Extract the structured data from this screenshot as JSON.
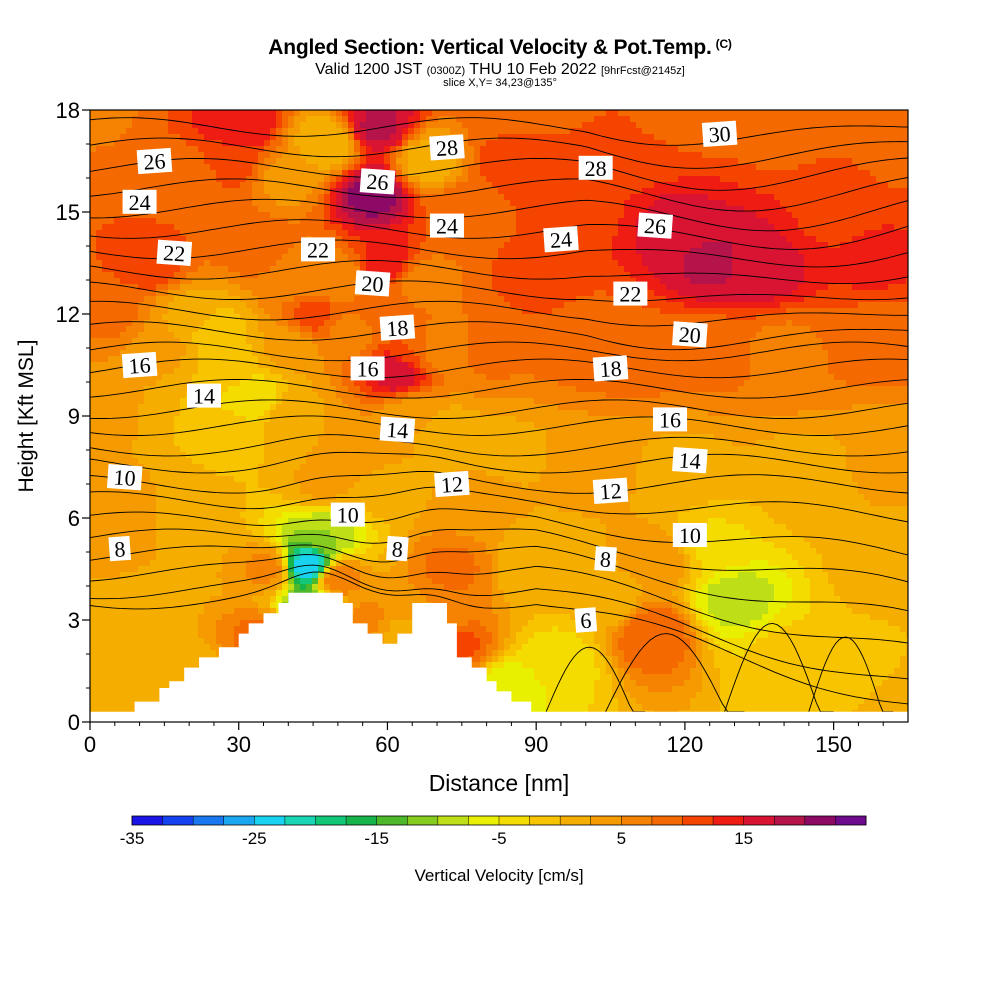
{
  "title": {
    "main": "Angled Section: Vertical Velocity & Pot.Temp.",
    "tag": "(C)",
    "valid_prefix": "Valid 1200 JST",
    "valid_utc": "(0300Z)",
    "valid_date": "THU 10 Feb 2022",
    "forecast": "[9hrFcst@2145z]",
    "slice": "slice X,Y= 34,23@135°"
  },
  "colors": {
    "background": "#ffffff",
    "contour_line": "#000000",
    "terrain": "#ffffff",
    "colorbar": [
      "#1a14e6",
      "#1442f0",
      "#1978f0",
      "#1aa6f0",
      "#19d2f0",
      "#1ad6b4",
      "#12c878",
      "#16b44a",
      "#4cb82a",
      "#86cc1e",
      "#bedf18",
      "#e8f000",
      "#f5dc00",
      "#f8c400",
      "#f5ae00",
      "#f59a00",
      "#f58200",
      "#f56a00",
      "#f54400",
      "#ef1c14",
      "#d81432",
      "#b4144a",
      "#8c0a66",
      "#6e0a8c"
    ]
  },
  "chart_data": {
    "type": "heatmap",
    "xlabel": "Distance [nm]",
    "ylabel": "Height [Kft MSL]",
    "xlim": [
      0,
      165
    ],
    "ylim": [
      0,
      18
    ],
    "xticks": [
      0,
      30,
      60,
      90,
      120,
      150
    ],
    "yticks": [
      0,
      3,
      6,
      9,
      12,
      15,
      18
    ],
    "colorbar": {
      "label": "Vertical Velocity [cm/s]",
      "min": -35,
      "max": 23,
      "step": 2.5,
      "tick_values": [
        -35,
        -25,
        -15,
        -5,
        5,
        15
      ]
    },
    "velocity_field": [
      {
        "x": 0,
        "y": 0.7,
        "w": 2
      },
      {
        "x": 10,
        "y": 2.5,
        "w": 1
      },
      {
        "x": 22,
        "y": 1.2,
        "w": 1
      },
      {
        "x": 35,
        "y": 2.5,
        "w": 9
      },
      {
        "x": 36,
        "y": 4.5,
        "w": 6
      },
      {
        "x": 38,
        "y": 1.0,
        "w": 9
      },
      {
        "x": 44,
        "y": 4.6,
        "w": -25
      },
      {
        "x": 47,
        "y": 5.5,
        "w": -10
      },
      {
        "x": 45,
        "y": 3.2,
        "w": -20
      },
      {
        "x": 50,
        "y": 4.2,
        "w": 7
      },
      {
        "x": 55,
        "y": 3.0,
        "w": 6
      },
      {
        "x": 63,
        "y": 2.6,
        "w": 2
      },
      {
        "x": 70,
        "y": 3.0,
        "w": 5
      },
      {
        "x": 73,
        "y": 4.5,
        "w": 8
      },
      {
        "x": 74,
        "y": 2.2,
        "w": 11
      },
      {
        "x": 78,
        "y": 6.5,
        "w": 3
      },
      {
        "x": 84,
        "y": 1.0,
        "w": -7
      },
      {
        "x": 95,
        "y": 1.8,
        "w": -4
      },
      {
        "x": 105,
        "y": 3.5,
        "w": 1
      },
      {
        "x": 113,
        "y": 2.6,
        "w": 10
      },
      {
        "x": 115,
        "y": 4.8,
        "w": 4
      },
      {
        "x": 125,
        "y": 5.2,
        "w": -3
      },
      {
        "x": 130,
        "y": 3.6,
        "w": -9
      },
      {
        "x": 140,
        "y": 2.0,
        "w": -2
      },
      {
        "x": 155,
        "y": 1.5,
        "w": -1
      },
      {
        "x": 160,
        "y": 4.5,
        "w": 1
      },
      {
        "x": 5,
        "y": 6.0,
        "w": 4
      },
      {
        "x": 20,
        "y": 6.0,
        "w": 2
      },
      {
        "x": 28,
        "y": 8.5,
        "w": -1
      },
      {
        "x": 28,
        "y": 10.5,
        "w": -1
      },
      {
        "x": 33,
        "y": 9.5,
        "w": -5
      },
      {
        "x": 40,
        "y": 9.0,
        "w": 2
      },
      {
        "x": 47,
        "y": 7.0,
        "w": 3
      },
      {
        "x": 55,
        "y": 8.0,
        "w": 4
      },
      {
        "x": 60,
        "y": 7.0,
        "w": 2
      },
      {
        "x": 65,
        "y": 9.0,
        "w": 3
      },
      {
        "x": 72,
        "y": 8.5,
        "w": 1
      },
      {
        "x": 85,
        "y": 8.0,
        "w": 2
      },
      {
        "x": 100,
        "y": 7.5,
        "w": 3
      },
      {
        "x": 120,
        "y": 7.5,
        "w": 2
      },
      {
        "x": 145,
        "y": 7.0,
        "w": 1
      },
      {
        "x": 160,
        "y": 7.5,
        "w": 3
      },
      {
        "x": 5,
        "y": 12.0,
        "w": 8
      },
      {
        "x": 15,
        "y": 11.0,
        "w": 3
      },
      {
        "x": 20,
        "y": 12.0,
        "w": 2
      },
      {
        "x": 25,
        "y": 11.5,
        "w": -2
      },
      {
        "x": 40,
        "y": 11.0,
        "w": 3
      },
      {
        "x": 45,
        "y": 12.0,
        "w": 11
      },
      {
        "x": 53,
        "y": 11.5,
        "w": 6
      },
      {
        "x": 58,
        "y": 12.0,
        "w": 10
      },
      {
        "x": 62,
        "y": 10.3,
        "w": 17
      },
      {
        "x": 65,
        "y": 11.0,
        "w": 10
      },
      {
        "x": 70,
        "y": 11.0,
        "w": 5
      },
      {
        "x": 80,
        "y": 11.0,
        "w": 8
      },
      {
        "x": 90,
        "y": 12.0,
        "w": 10
      },
      {
        "x": 100,
        "y": 11.0,
        "w": 8
      },
      {
        "x": 110,
        "y": 11.0,
        "w": 9
      },
      {
        "x": 125,
        "y": 11.0,
        "w": 8
      },
      {
        "x": 140,
        "y": 11.0,
        "w": 7
      },
      {
        "x": 160,
        "y": 11.5,
        "w": 9
      },
      {
        "x": 5,
        "y": 15.0,
        "w": 10
      },
      {
        "x": 12,
        "y": 13.5,
        "w": 12
      },
      {
        "x": 20,
        "y": 16.0,
        "w": 8
      },
      {
        "x": 28,
        "y": 16.5,
        "w": 11
      },
      {
        "x": 30,
        "y": 17.5,
        "w": 15
      },
      {
        "x": 33,
        "y": 14.0,
        "w": 9
      },
      {
        "x": 40,
        "y": 16.0,
        "w": 4
      },
      {
        "x": 42,
        "y": 13.0,
        "w": 6
      },
      {
        "x": 48,
        "y": 17.0,
        "w": 0
      },
      {
        "x": 50,
        "y": 13.0,
        "w": 5
      },
      {
        "x": 57,
        "y": 15.5,
        "w": 21
      },
      {
        "x": 58,
        "y": 17.5,
        "w": 18
      },
      {
        "x": 60,
        "y": 13.5,
        "w": 14
      },
      {
        "x": 68,
        "y": 16.5,
        "w": 1
      },
      {
        "x": 67,
        "y": 13.0,
        "w": 6
      },
      {
        "x": 75,
        "y": 15.0,
        "w": 9
      },
      {
        "x": 85,
        "y": 16.5,
        "w": 11
      },
      {
        "x": 90,
        "y": 13.0,
        "w": 11
      },
      {
        "x": 100,
        "y": 15.0,
        "w": 12
      },
      {
        "x": 110,
        "y": 17.0,
        "w": 10
      },
      {
        "x": 118,
        "y": 14.5,
        "w": 16
      },
      {
        "x": 125,
        "y": 13.5,
        "w": 18
      },
      {
        "x": 135,
        "y": 13.3,
        "w": 17
      },
      {
        "x": 140,
        "y": 17.5,
        "w": 9
      },
      {
        "x": 150,
        "y": 15.0,
        "w": 12
      },
      {
        "x": 158,
        "y": 13.5,
        "w": 13
      },
      {
        "x": 163,
        "y": 17.0,
        "w": 9
      },
      {
        "x": 0,
        "y": 18.0,
        "w": 7
      },
      {
        "x": 85,
        "y": 18.0,
        "w": 9
      },
      {
        "x": 125,
        "y": 18.0,
        "w": 9
      },
      {
        "x": 0,
        "y": 9.0,
        "w": 3
      },
      {
        "x": 165,
        "y": 0.5,
        "w": 2
      },
      {
        "x": 90,
        "y": 4.5,
        "w": 0
      },
      {
        "x": 75,
        "y": 0.8,
        "w": 1
      }
    ],
    "terrain_profile": [
      [
        0,
        0.3
      ],
      [
        9,
        0.3
      ],
      [
        9,
        0.6
      ],
      [
        14,
        0.6
      ],
      [
        14,
        1.0
      ],
      [
        16,
        1.0
      ],
      [
        16,
        1.2
      ],
      [
        19,
        1.2
      ],
      [
        19,
        1.6
      ],
      [
        22,
        1.6
      ],
      [
        22,
        1.9
      ],
      [
        26,
        1.9
      ],
      [
        26,
        2.2
      ],
      [
        30,
        2.2
      ],
      [
        30,
        2.6
      ],
      [
        32,
        2.6
      ],
      [
        32,
        2.9
      ],
      [
        35,
        2.9
      ],
      [
        35,
        3.2
      ],
      [
        38,
        3.2
      ],
      [
        38,
        3.5
      ],
      [
        40,
        3.5
      ],
      [
        40,
        3.8
      ],
      [
        51,
        3.8
      ],
      [
        51,
        3.5
      ],
      [
        53,
        3.5
      ],
      [
        53,
        2.9
      ],
      [
        56,
        2.9
      ],
      [
        56,
        2.6
      ],
      [
        59,
        2.6
      ],
      [
        59,
        2.3
      ],
      [
        62,
        2.3
      ],
      [
        62,
        2.6
      ],
      [
        65,
        2.6
      ],
      [
        65,
        3.5
      ],
      [
        72,
        3.5
      ],
      [
        72,
        2.9
      ],
      [
        74,
        2.9
      ],
      [
        74,
        1.9
      ],
      [
        77,
        1.9
      ],
      [
        77,
        1.6
      ],
      [
        80,
        1.6
      ],
      [
        80,
        1.2
      ],
      [
        82,
        1.2
      ],
      [
        82,
        0.9
      ],
      [
        85,
        0.9
      ],
      [
        85,
        0.6
      ],
      [
        89,
        0.6
      ],
      [
        89,
        0.3
      ],
      [
        165,
        0.3
      ]
    ],
    "potential_temperature": {
      "units": "C",
      "levels": [
        {
          "v": 6,
          "y0": 3.6
        },
        {
          "v": 7,
          "y0": 3.9
        },
        {
          "v": 8,
          "y0": 4.4
        },
        {
          "v": 9,
          "y0": 4.9
        },
        {
          "v": 10,
          "y0": 5.4
        },
        {
          "v": 11,
          "y0": 5.9
        },
        {
          "v": 12,
          "y0": 6.5
        },
        {
          "v": 13,
          "y0": 7.0
        },
        {
          "v": 14,
          "y0": 7.6
        },
        {
          "v": 15,
          "y0": 8.1
        },
        {
          "v": 16,
          "y0": 8.7
        },
        {
          "v": 17,
          "y0": 9.2
        },
        {
          "v": 18,
          "y0": 9.8
        },
        {
          "v": 19,
          "y0": 10.4
        },
        {
          "v": 20,
          "y0": 10.9
        },
        {
          "v": 21,
          "y0": 11.5
        },
        {
          "v": 22,
          "y0": 12.1
        },
        {
          "v": 23,
          "y0": 12.7
        },
        {
          "v": 24,
          "y0": 13.3
        },
        {
          "v": 25,
          "y0": 13.9
        },
        {
          "v": 26,
          "y0": 14.5
        },
        {
          "v": 27,
          "y0": 15.1
        },
        {
          "v": 28,
          "y0": 15.7
        },
        {
          "v": 29,
          "y0": 16.3
        },
        {
          "v": 30,
          "y0": 16.9
        },
        {
          "v": 31,
          "y0": 17.5
        }
      ],
      "labels": [
        {
          "text": "26",
          "x": 13,
          "y": 16.5
        },
        {
          "text": "24",
          "x": 10,
          "y": 15.3
        },
        {
          "text": "22",
          "x": 17,
          "y": 13.8
        },
        {
          "text": "16",
          "x": 10,
          "y": 10.5
        },
        {
          "text": "14",
          "x": 23,
          "y": 9.6
        },
        {
          "text": "10",
          "x": 7,
          "y": 7.2
        },
        {
          "text": "8",
          "x": 6,
          "y": 5.1
        },
        {
          "text": "22",
          "x": 46,
          "y": 13.9
        },
        {
          "text": "26",
          "x": 58,
          "y": 15.9
        },
        {
          "text": "28",
          "x": 72,
          "y": 16.9
        },
        {
          "text": "24",
          "x": 72,
          "y": 14.6
        },
        {
          "text": "20",
          "x": 57,
          "y": 12.9
        },
        {
          "text": "18",
          "x": 62,
          "y": 11.6
        },
        {
          "text": "16",
          "x": 56,
          "y": 10.4
        },
        {
          "text": "14",
          "x": 62,
          "y": 8.6
        },
        {
          "text": "12",
          "x": 73,
          "y": 7.0
        },
        {
          "text": "10",
          "x": 52,
          "y": 6.1
        },
        {
          "text": "8",
          "x": 62,
          "y": 5.1
        },
        {
          "text": "30",
          "x": 127,
          "y": 17.3
        },
        {
          "text": "28",
          "x": 102,
          "y": 16.3
        },
        {
          "text": "26",
          "x": 114,
          "y": 14.6
        },
        {
          "text": "24",
          "x": 95,
          "y": 14.2
        },
        {
          "text": "22",
          "x": 109,
          "y": 12.6
        },
        {
          "text": "20",
          "x": 121,
          "y": 11.4
        },
        {
          "text": "18",
          "x": 105,
          "y": 10.4
        },
        {
          "text": "16",
          "x": 117,
          "y": 8.9
        },
        {
          "text": "14",
          "x": 121,
          "y": 7.7
        },
        {
          "text": "12",
          "x": 105,
          "y": 6.8
        },
        {
          "text": "10",
          "x": 121,
          "y": 5.5
        },
        {
          "text": "8",
          "x": 104,
          "y": 4.8
        },
        {
          "text": "6",
          "x": 100,
          "y": 3.0
        }
      ]
    }
  }
}
